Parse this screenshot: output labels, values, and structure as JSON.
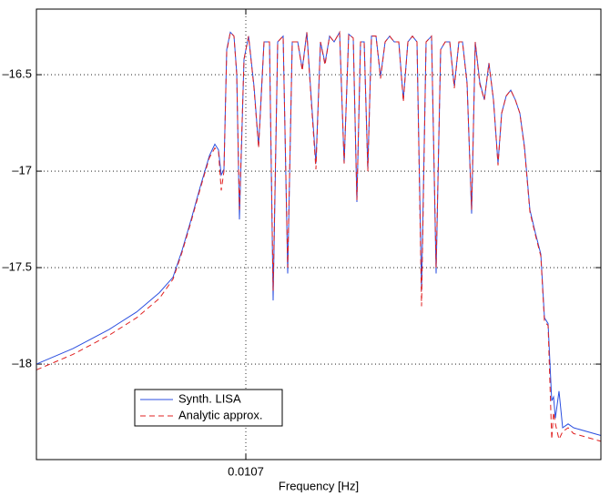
{
  "chart_data": {
    "type": "line",
    "xlabel": "Frequency [Hz]",
    "xlim": [
      0.01047,
      0.01109
    ],
    "xticks": [
      0.0107
    ],
    "ylim": [
      -18.495,
      -16.16
    ],
    "yticks": [
      {
        "value": -18,
        "label": "–18"
      },
      {
        "value": -17.5,
        "label": "–17.5"
      },
      {
        "value": -17,
        "label": "–17"
      },
      {
        "value": -16.5,
        "label": "–16.5"
      }
    ],
    "grid": true,
    "legend": "lower left",
    "x": [
      0.01047,
      0.01051,
      0.01055,
      0.01058,
      0.010605,
      0.01062,
      0.01063,
      0.01064,
      0.01065,
      0.01066,
      0.010666,
      0.01067,
      0.010673,
      0.010676,
      0.010679,
      0.010683,
      0.010687,
      0.01069,
      0.010693,
      0.010698,
      0.010703,
      0.010709,
      0.010714,
      0.01072,
      0.010726,
      0.01073,
      0.010735,
      0.010741,
      0.010746,
      0.010751,
      0.010757,
      0.010762,
      0.010767,
      0.010772,
      0.010777,
      0.010782,
      0.010787,
      0.010792,
      0.010797,
      0.010803,
      0.010808,
      0.010813,
      0.010818,
      0.010822,
      0.010826,
      0.01083,
      0.010834,
      0.010838,
      0.010843,
      0.010848,
      0.010853,
      0.010858,
      0.010863,
      0.010868,
      0.010873,
      0.010878,
      0.010883,
      0.010888,
      0.010893,
      0.010898,
      0.010904,
      0.010909,
      0.010914,
      0.010919,
      0.010924,
      0.010929,
      0.010934,
      0.010938,
      0.010943,
      0.010948,
      0.010952,
      0.010957,
      0.010962,
      0.010967,
      0.010972,
      0.010977,
      0.010981,
      0.010986,
      0.010991,
      0.010996,
      0.011001,
      0.011006,
      0.011012,
      0.011018,
      0.011024,
      0.011028,
      0.011032,
      0.011036,
      0.011038,
      0.01104,
      0.011044,
      0.011048,
      0.011054,
      0.01106,
      0.01109
    ],
    "series": [
      {
        "name": "Synth. LISA",
        "color": "#2b4fe0",
        "dash": false,
        "values": [
          -18.0,
          -17.92,
          -17.82,
          -17.73,
          -17.63,
          -17.55,
          -17.41,
          -17.25,
          -17.08,
          -16.92,
          -16.86,
          -16.89,
          -17.02,
          -16.99,
          -16.37,
          -16.28,
          -16.3,
          -16.49,
          -17.25,
          -16.42,
          -16.3,
          -16.56,
          -16.87,
          -16.33,
          -16.33,
          -17.67,
          -16.33,
          -16.3,
          -17.53,
          -16.33,
          -16.33,
          -16.47,
          -16.28,
          -16.63,
          -16.96,
          -16.33,
          -16.44,
          -16.3,
          -16.33,
          -16.28,
          -16.96,
          -16.29,
          -16.31,
          -17.16,
          -16.33,
          -16.33,
          -16.99,
          -16.3,
          -16.3,
          -16.51,
          -16.33,
          -16.3,
          -16.33,
          -16.33,
          -16.63,
          -16.33,
          -16.3,
          -16.33,
          -17.62,
          -16.33,
          -16.3,
          -17.53,
          -16.37,
          -16.33,
          -16.33,
          -16.56,
          -16.33,
          -16.33,
          -16.54,
          -17.22,
          -16.33,
          -16.54,
          -16.63,
          -16.44,
          -16.63,
          -16.96,
          -16.7,
          -16.61,
          -16.58,
          -16.63,
          -16.7,
          -16.87,
          -17.2,
          -17.32,
          -17.43,
          -17.76,
          -17.79,
          -18.19,
          -18.17,
          -18.28,
          -18.14,
          -18.33,
          -18.31,
          -18.33,
          -18.37
        ]
      },
      {
        "name": "Analytic approx.",
        "color": "#e02020",
        "dash": true,
        "values": [
          -18.03,
          -17.95,
          -17.85,
          -17.76,
          -17.66,
          -17.56,
          -17.42,
          -17.26,
          -17.09,
          -16.93,
          -16.88,
          -16.9,
          -17.1,
          -17.0,
          -16.38,
          -16.28,
          -16.3,
          -16.5,
          -17.2,
          -16.42,
          -16.3,
          -16.57,
          -16.88,
          -16.33,
          -16.33,
          -17.62,
          -16.33,
          -16.3,
          -17.5,
          -16.33,
          -16.33,
          -16.48,
          -16.28,
          -16.65,
          -16.99,
          -16.33,
          -16.45,
          -16.3,
          -16.33,
          -16.28,
          -16.96,
          -16.29,
          -16.31,
          -17.15,
          -16.33,
          -16.33,
          -17.0,
          -16.3,
          -16.3,
          -16.52,
          -16.33,
          -16.3,
          -16.33,
          -16.33,
          -16.64,
          -16.33,
          -16.3,
          -16.33,
          -17.7,
          -16.33,
          -16.3,
          -17.5,
          -16.37,
          -16.33,
          -16.33,
          -16.57,
          -16.33,
          -16.33,
          -16.55,
          -17.2,
          -16.33,
          -16.55,
          -16.63,
          -16.44,
          -16.63,
          -16.97,
          -16.7,
          -16.61,
          -16.58,
          -16.63,
          -16.7,
          -16.88,
          -17.21,
          -17.33,
          -17.44,
          -17.78,
          -17.8,
          -18.39,
          -18.25,
          -18.31,
          -18.39,
          -18.35,
          -18.33,
          -18.36,
          -18.4
        ]
      }
    ]
  }
}
